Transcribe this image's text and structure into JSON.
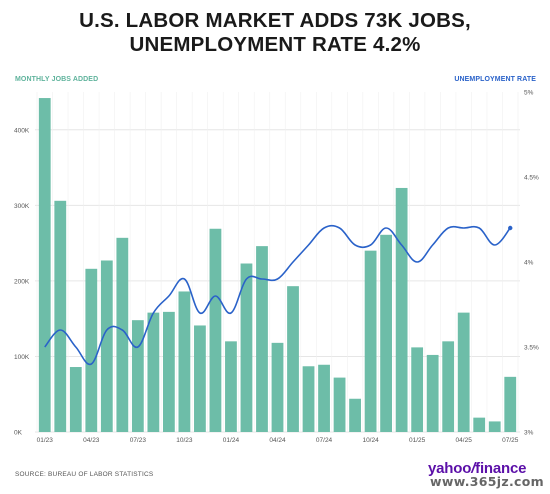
{
  "title": "U.S. LABOR MARKET ADDS 73K JOBS, UNEMPLOYMENT RATE 4.2%",
  "source": "SOURCE: BUREAU OF LABOR STATISTICS",
  "logo": {
    "brand": "yahoo",
    "separator": "/",
    "section": "finance"
  },
  "watermark": "www.365jz.com",
  "colors": {
    "bars": "#6dbda8",
    "line": "#2a62c9",
    "left_axis_title": "#5fb39c",
    "right_axis_title": "#2a62c9",
    "grid": "#e6e6e6"
  },
  "chart_data": {
    "type": "bar",
    "title": "U.S. LABOR MARKET ADDS 73K JOBS, UNEMPLOYMENT RATE 4.2%",
    "ylabel": "MONTHLY JOBS ADDED",
    "y2label": "UNEMPLOYMENT RATE",
    "ylim": [
      0,
      450000
    ],
    "y2lim": [
      3.0,
      5.0
    ],
    "yticks": [
      0,
      100000,
      200000,
      300000,
      400000
    ],
    "ytick_labels": [
      "0K",
      "100K",
      "200K",
      "300K",
      "400K"
    ],
    "y2ticks": [
      3.0,
      3.5,
      4.0,
      4.5,
      5.0
    ],
    "y2tick_labels": [
      "3%",
      "3.5%",
      "4%",
      "4.5%",
      "5%"
    ],
    "xtick_labels": [
      "01/23",
      "04/23",
      "07/23",
      "10/23",
      "01/24",
      "04/24",
      "07/24",
      "10/24",
      "01/25",
      "04/25",
      "07/25"
    ],
    "grid": true,
    "categories": [
      "01/23",
      "02/23",
      "03/23",
      "04/23",
      "05/23",
      "06/23",
      "07/23",
      "08/23",
      "09/23",
      "10/23",
      "11/23",
      "12/23",
      "01/24",
      "02/24",
      "03/24",
      "04/24",
      "05/24",
      "06/24",
      "07/24",
      "08/24",
      "09/24",
      "10/24",
      "11/24",
      "12/24",
      "01/25",
      "02/25",
      "03/25",
      "04/25",
      "05/25",
      "06/25",
      "07/25"
    ],
    "series": [
      {
        "name": "MONTHLY JOBS ADDED",
        "type": "bar",
        "axis": "left",
        "values": [
          442000,
          306000,
          86000,
          216000,
          227000,
          257000,
          148000,
          158000,
          159000,
          186000,
          141000,
          269000,
          120000,
          223000,
          246000,
          118000,
          193000,
          87000,
          89000,
          72000,
          44000,
          240000,
          261000,
          323000,
          112000,
          102000,
          120000,
          158000,
          19000,
          14000,
          73000
        ]
      },
      {
        "name": "UNEMPLOYMENT RATE",
        "type": "line",
        "axis": "right",
        "values": [
          3.5,
          3.6,
          3.5,
          3.4,
          3.6,
          3.6,
          3.5,
          3.7,
          3.8,
          3.9,
          3.7,
          3.8,
          3.7,
          3.9,
          3.9,
          3.9,
          4.0,
          4.1,
          4.2,
          4.2,
          4.1,
          4.1,
          4.2,
          4.1,
          4.0,
          4.1,
          4.2,
          4.2,
          4.2,
          4.1,
          4.2
        ]
      }
    ]
  }
}
